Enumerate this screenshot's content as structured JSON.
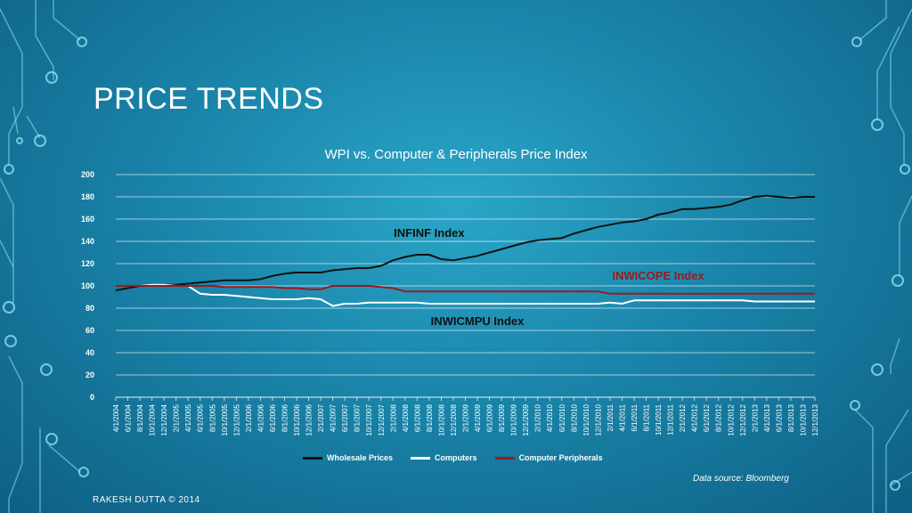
{
  "slide": {
    "title": "PRICE TRENDS",
    "source": "Data source: Bloomberg",
    "footer": "RAKESH DUTTA © 2014"
  },
  "colors": {
    "wholesale": "#111111",
    "computers": "#ffffff",
    "peripherals": "#9b1a1a",
    "grid": "#ffffff"
  },
  "chart_data": {
    "type": "line",
    "title": "WPI vs. Computer & Peripherals Price Index",
    "xlabel": "",
    "ylabel": "",
    "ylim": [
      0,
      200
    ],
    "yticks": [
      0,
      20,
      40,
      60,
      80,
      100,
      120,
      140,
      160,
      180,
      200
    ],
    "grid": true,
    "legend_position": "bottom",
    "categories": [
      "4/1/2004",
      "6/1/2004",
      "8/1/2004",
      "10/1/2004",
      "12/1/2004",
      "2/1/2005",
      "4/1/2005",
      "6/1/2005",
      "8/1/2005",
      "10/1/2005",
      "12/1/2005",
      "2/1/2006",
      "4/1/2006",
      "6/1/2006",
      "8/1/2006",
      "10/1/2006",
      "12/1/2006",
      "2/1/2007",
      "4/1/2007",
      "6/1/2007",
      "8/1/2007",
      "10/1/2007",
      "12/1/2007",
      "2/1/2008",
      "4/1/2008",
      "6/1/2008",
      "8/1/2008",
      "10/1/2008",
      "12/1/2008",
      "2/1/2009",
      "4/1/2009",
      "6/1/2009",
      "8/1/2009",
      "10/1/2009",
      "12/1/2009",
      "2/1/2010",
      "4/1/2010",
      "6/1/2010",
      "8/1/2010",
      "10/1/2010",
      "12/1/2010",
      "2/1/2011",
      "4/1/2011",
      "6/1/2011",
      "8/1/2011",
      "10/1/2011",
      "12/1/2011",
      "2/1/2012",
      "4/1/2012",
      "6/1/2012",
      "8/1/2012",
      "10/1/2012",
      "12/1/2012",
      "2/1/2013",
      "4/1/2013",
      "6/1/2013",
      "8/1/2013",
      "10/1/2013",
      "12/1/2013"
    ],
    "series": [
      {
        "name": "Wholesale Prices",
        "color_key": "wholesale",
        "values": [
          96,
          98,
          100,
          101,
          101,
          101,
          102,
          103,
          104,
          105,
          105,
          105,
          106,
          109,
          111,
          112,
          112,
          112,
          114,
          115,
          116,
          116,
          118,
          123,
          126,
          128,
          128,
          124,
          123,
          125,
          127,
          130,
          133,
          136,
          139,
          141,
          142,
          143,
          147,
          150,
          153,
          155,
          157,
          158,
          160,
          164,
          166,
          169,
          169,
          170,
          171,
          173,
          177,
          180,
          181,
          180,
          179,
          180,
          180
        ]
      },
      {
        "name": "Computers",
        "color_key": "computers",
        "values": [
          100,
          100,
          100,
          101,
          101,
          100,
          100,
          93,
          92,
          92,
          91,
          90,
          89,
          88,
          88,
          88,
          89,
          88,
          82,
          84,
          84,
          85,
          85,
          85,
          85,
          85,
          84,
          84,
          84,
          84,
          84,
          84,
          84,
          84,
          84,
          84,
          84,
          84,
          84,
          84,
          84,
          85,
          84,
          87,
          87,
          87,
          87,
          87,
          87,
          87,
          87,
          87,
          87,
          86,
          86,
          86,
          86,
          86,
          86
        ]
      },
      {
        "name": "Computer Peripherals",
        "color_key": "peripherals",
        "values": [
          100,
          100,
          100,
          100,
          100,
          100,
          100,
          100,
          100,
          99,
          99,
          99,
          99,
          99,
          98,
          98,
          97,
          97,
          100,
          100,
          100,
          100,
          99,
          98,
          95,
          95,
          95,
          95,
          95,
          95,
          95,
          95,
          95,
          95,
          95,
          95,
          95,
          95,
          95,
          95,
          95,
          93,
          93,
          93,
          93,
          93,
          93,
          93,
          93,
          93,
          93,
          93,
          93,
          93,
          93,
          93,
          93,
          93,
          93
        ]
      }
    ],
    "annotations": [
      {
        "text": "INFINF Index",
        "series": "Wholesale Prices"
      },
      {
        "text": "INWICOPE Index",
        "series": "Computer Peripherals"
      },
      {
        "text": "INWICMPU Index",
        "series": "Computers"
      }
    ]
  }
}
